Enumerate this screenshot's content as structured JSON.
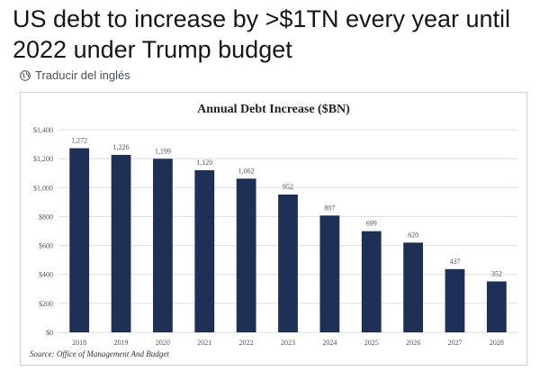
{
  "headline": "US debt to increase by >$1TN every year until 2022 under Trump budget",
  "translate_label": "Traducir del inglés",
  "icons": {
    "translate": "globe-icon"
  },
  "chart_data": {
    "type": "bar",
    "title": "Annual Debt Increase ($BN)",
    "categories": [
      "2018",
      "2019",
      "2020",
      "2021",
      "2022",
      "2023",
      "2024",
      "2025",
      "2026",
      "2027",
      "2028"
    ],
    "values": [
      1272,
      1226,
      1199,
      1120,
      1062,
      952,
      807,
      699,
      620,
      437,
      352
    ],
    "data_labels": [
      "1,272",
      "1,226",
      "1,199",
      "1,120",
      "1,062",
      "952",
      "807",
      "699",
      "620",
      "437",
      "352"
    ],
    "ylim": [
      0,
      1400
    ],
    "yticks": [
      0,
      200,
      400,
      600,
      800,
      1000,
      1200,
      1400
    ],
    "ytick_labels": [
      "$0",
      "$200",
      "$400",
      "$600",
      "$800",
      "$1,000",
      "$1,200",
      "$1,400"
    ],
    "grid": true,
    "bar_color": "#1f3057",
    "source": "Source: Office of Management And Budget"
  }
}
